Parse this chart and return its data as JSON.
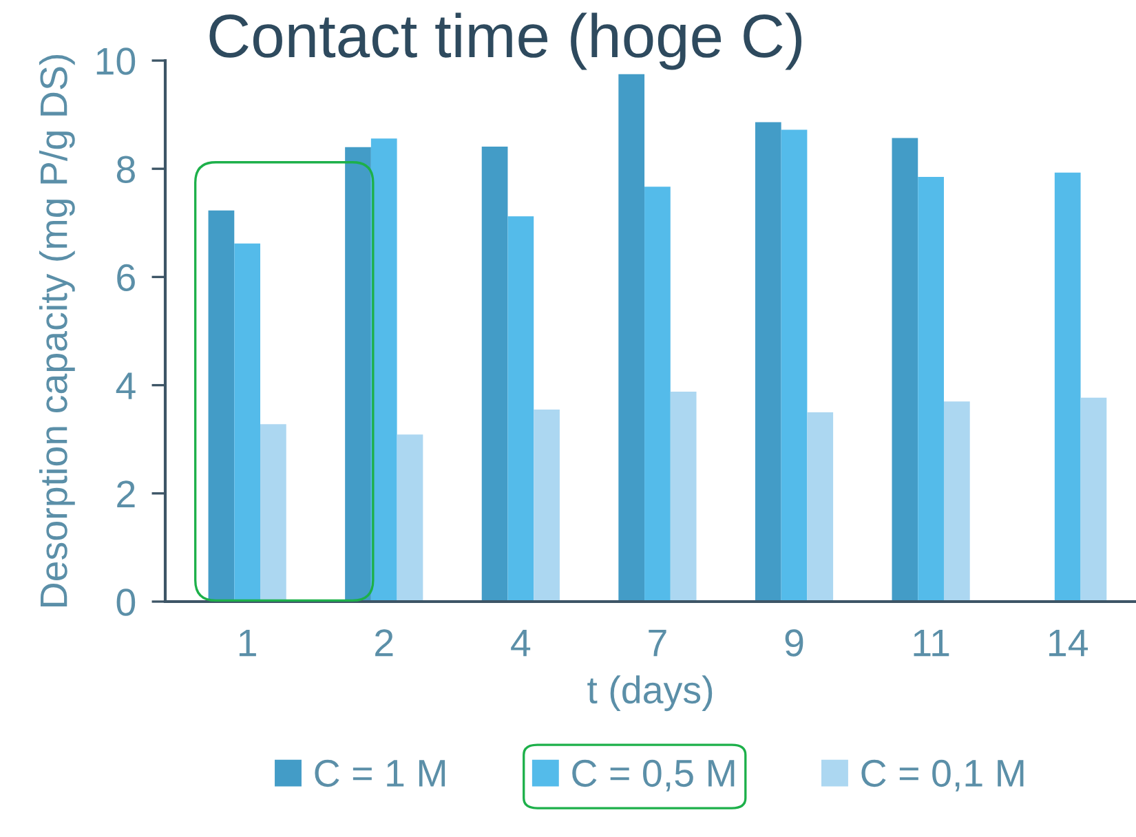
{
  "chart_data": {
    "type": "bar",
    "title": "Contact time (hoge C)",
    "xlabel": "t (days)",
    "ylabel": "Desorption capacity (mg P/g DS)",
    "categories": [
      "1",
      "2",
      "4",
      "7",
      "9",
      "11",
      "14"
    ],
    "series": [
      {
        "name": "C = 1 M",
        "color": "#439cc7",
        "values": [
          7.23,
          8.4,
          8.41,
          9.75,
          8.86,
          8.57,
          null
        ]
      },
      {
        "name": "C = 0,5 M",
        "color": "#54bbea",
        "values": [
          6.62,
          8.56,
          7.12,
          7.67,
          8.72,
          7.85,
          7.93
        ]
      },
      {
        "name": "C = 0,1 M",
        "color": "#acd7f1",
        "values": [
          3.28,
          3.09,
          3.55,
          3.88,
          3.5,
          3.7,
          3.77
        ]
      }
    ],
    "ylim": [
      0,
      10
    ],
    "yticks": [
      0,
      2,
      4,
      6,
      8,
      10
    ],
    "grid": false,
    "legend": "bottom"
  }
}
